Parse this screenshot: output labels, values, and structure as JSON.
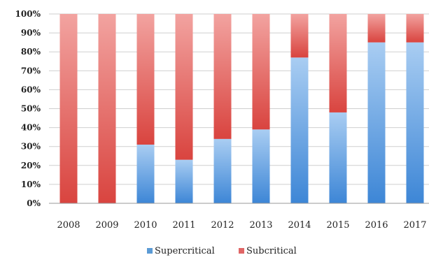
{
  "chart_data": {
    "type": "bar",
    "stacked": true,
    "categories": [
      "2008",
      "2009",
      "2010",
      "2011",
      "2012",
      "2013",
      "2014",
      "2015",
      "2016",
      "2017"
    ],
    "series": [
      {
        "name": "Supercritical",
        "color": "#5b9bd5",
        "values": [
          0,
          0,
          31,
          23,
          34,
          39,
          77,
          48,
          85,
          85
        ]
      },
      {
        "name": "Subcritical",
        "color": "#e06666",
        "values": [
          100,
          100,
          69,
          77,
          66,
          61,
          23,
          52,
          15,
          15
        ]
      }
    ],
    "y_ticks": [
      "0%",
      "10%",
      "20%",
      "30%",
      "40%",
      "50%",
      "60%",
      "70%",
      "80%",
      "90%",
      "100%"
    ],
    "ylim": [
      0,
      100
    ],
    "grid": true,
    "legend_position": "bottom"
  }
}
